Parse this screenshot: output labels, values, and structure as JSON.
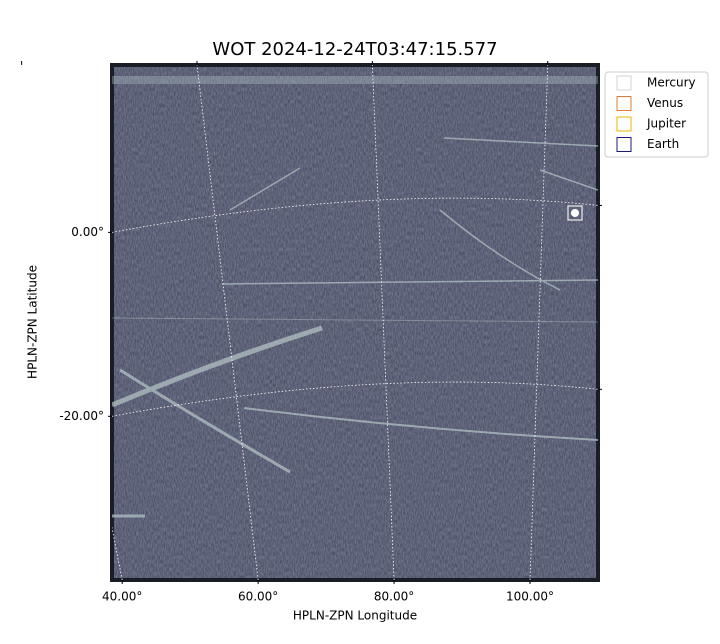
{
  "chart_data": {
    "type": "image",
    "title": "WOT 2024-12-24T03:47:15.577",
    "xlabel": "HPLN-ZPN Longitude",
    "ylabel": "HPLN-ZPN Latitude",
    "xlim": [
      38.5,
      110
    ],
    "ylim": [
      -37.8,
      18.2
    ],
    "xticks": [
      {
        "value": 40,
        "label": "40.00°"
      },
      {
        "value": 60,
        "label": "60.00°"
      },
      {
        "value": 80,
        "label": "80.00°"
      },
      {
        "value": 100,
        "label": "100.00°"
      }
    ],
    "yticks": [
      {
        "value": 0,
        "label": "0.00°"
      },
      {
        "value": -20,
        "label": "-20.00°"
      }
    ],
    "grid": true,
    "legend": "outside",
    "series": [
      {
        "name": "Mercury",
        "color": "#d3d3d3"
      },
      {
        "name": "Venus",
        "color": "#e07b39"
      },
      {
        "name": "Jupiter",
        "color": "#e6b400"
      },
      {
        "name": "Earth",
        "color": "#1a1a80"
      }
    ]
  }
}
